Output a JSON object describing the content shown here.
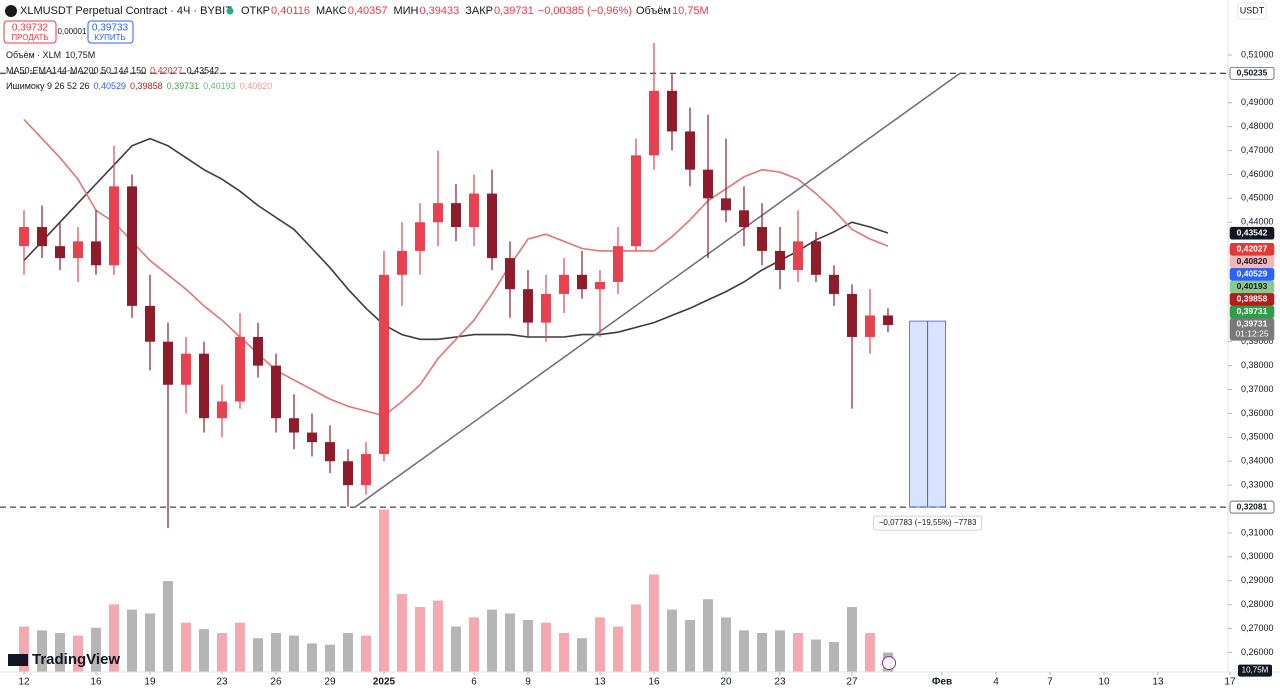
{
  "header": {
    "symbol": "XLMUSDT Perpetual Contract · 4Ч · BYBIT",
    "ohlc": [
      {
        "label": "ОТКР",
        "value": "0,40116"
      },
      {
        "label": "МАКС",
        "value": "0,40357"
      },
      {
        "label": "МИН",
        "value": "0,39433"
      },
      {
        "label": "ЗАКР",
        "value": "0,39731"
      }
    ],
    "change": "−0,00385 (−0,96%)",
    "volume_label": "Объём",
    "volume": "10,75M"
  },
  "trade": {
    "sell_price": "0,39732",
    "sell_label": "ПРОДАТЬ",
    "spread": "0,00001",
    "buy_price": "0,39733",
    "buy_label": "КУПИТЬ"
  },
  "indicators": [
    {
      "name": "Объём · XLM",
      "values": [
        {
          "text": "10,75M",
          "color": "#131722"
        }
      ]
    },
    {
      "name": "MA50-EMA144-MA200 50 144 150",
      "values": [
        {
          "text": "0,42027",
          "color": "#e53935"
        },
        {
          "text": "0,43542",
          "color": "#131722"
        }
      ]
    },
    {
      "name": "Ишимоку 9 26 52 26",
      "values": [
        {
          "text": "0,40529",
          "color": "#2962ff"
        },
        {
          "text": "0,39858",
          "color": "#b71c1c"
        },
        {
          "text": "0,39731",
          "color": "#43a047"
        },
        {
          "text": "0,40193",
          "color": "#66bb6a"
        },
        {
          "text": "0,40820",
          "color": "#ef9a9a"
        }
      ]
    }
  ],
  "currency": "USDT",
  "brand": "TradingView",
  "chart_data": {
    "type": "candlestick",
    "xlim": [
      -1.333,
      66.89
    ],
    "ylim": [
      0.2518,
      0.533
    ],
    "xticks": [
      {
        "value": 0,
        "label": "12"
      },
      {
        "value": 4,
        "label": "16"
      },
      {
        "value": 7,
        "label": "19"
      },
      {
        "value": 11,
        "label": "23"
      },
      {
        "value": 14,
        "label": "26"
      },
      {
        "value": 17,
        "label": "29"
      },
      {
        "value": 20,
        "label": "2025"
      },
      {
        "value": 25,
        "label": "6"
      },
      {
        "value": 28,
        "label": "9"
      },
      {
        "value": 32,
        "label": "13"
      },
      {
        "value": 35,
        "label": "16"
      },
      {
        "value": 39,
        "label": "20"
      },
      {
        "value": 42,
        "label": "23"
      },
      {
        "value": 46,
        "label": "27"
      },
      {
        "value": 51,
        "label": "Фев"
      },
      {
        "value": 54,
        "label": "4"
      },
      {
        "value": 57,
        "label": "7"
      },
      {
        "value": 60,
        "label": "10"
      },
      {
        "value": 63,
        "label": "13"
      },
      {
        "value": 67,
        "label": "17"
      }
    ],
    "yticks": [
      {
        "value": 0.51,
        "label": "0,51000"
      },
      {
        "value": 0.49,
        "label": "0,49000"
      },
      {
        "value": 0.48,
        "label": "0,48000"
      },
      {
        "value": 0.47,
        "label": "0,47000"
      },
      {
        "value": 0.46,
        "label": "0,46000"
      },
      {
        "value": 0.45,
        "label": "0,45000"
      },
      {
        "value": 0.44,
        "label": "0,44000"
      },
      {
        "value": 0.39,
        "label": "0,39000"
      },
      {
        "value": 0.38,
        "label": "0,38000"
      },
      {
        "value": 0.37,
        "label": "0,37000"
      },
      {
        "value": 0.36,
        "label": "0,36000"
      },
      {
        "value": 0.35,
        "label": "0,35000"
      },
      {
        "value": 0.34,
        "label": "0,34000"
      },
      {
        "value": 0.33,
        "label": "0,33000"
      },
      {
        "value": 0.31,
        "label": "0,31000"
      },
      {
        "value": 0.3,
        "label": "0,30000"
      },
      {
        "value": 0.29,
        "label": "0,29000"
      },
      {
        "value": 0.28,
        "label": "0,28000"
      },
      {
        "value": 0.27,
        "label": "0,27000"
      },
      {
        "value": 0.26,
        "label": "0,26000"
      }
    ],
    "x": [
      0,
      1,
      2,
      3,
      4,
      5,
      6,
      7,
      8,
      9,
      10,
      11,
      12,
      13,
      14,
      15,
      16,
      17,
      18,
      19,
      20,
      21,
      22,
      23,
      24,
      25,
      26,
      27,
      28,
      29,
      30,
      31,
      32,
      33,
      34,
      35,
      36,
      37,
      38,
      39,
      40,
      41,
      42,
      43,
      44,
      45,
      46,
      47,
      48
    ],
    "open": [
      0.43,
      0.438,
      0.43,
      0.425,
      0.432,
      0.422,
      0.455,
      0.405,
      0.39,
      0.372,
      0.385,
      0.358,
      0.365,
      0.392,
      0.38,
      0.358,
      0.352,
      0.348,
      0.34,
      0.33,
      0.343,
      0.418,
      0.428,
      0.44,
      0.448,
      0.438,
      0.452,
      0.425,
      0.412,
      0.398,
      0.41,
      0.418,
      0.412,
      0.415,
      0.43,
      0.468,
      0.495,
      0.478,
      0.462,
      0.45,
      0.445,
      0.438,
      0.428,
      0.42,
      0.432,
      0.418,
      0.41,
      0.392,
      0.401
    ],
    "high": [
      0.445,
      0.447,
      0.44,
      0.438,
      0.445,
      0.472,
      0.46,
      0.418,
      0.398,
      0.392,
      0.39,
      0.372,
      0.402,
      0.398,
      0.385,
      0.368,
      0.36,
      0.355,
      0.345,
      0.348,
      0.428,
      0.44,
      0.448,
      0.47,
      0.456,
      0.46,
      0.462,
      0.432,
      0.42,
      0.418,
      0.425,
      0.428,
      0.42,
      0.438,
      0.475,
      0.515,
      0.502,
      0.488,
      0.485,
      0.475,
      0.455,
      0.448,
      0.438,
      0.445,
      0.436,
      0.422,
      0.414,
      0.412,
      0.404
    ],
    "low": [
      0.418,
      0.425,
      0.42,
      0.415,
      0.418,
      0.418,
      0.4,
      0.378,
      0.312,
      0.36,
      0.352,
      0.35,
      0.362,
      0.375,
      0.352,
      0.345,
      0.342,
      0.335,
      0.321,
      0.326,
      0.34,
      0.405,
      0.418,
      0.43,
      0.432,
      0.43,
      0.42,
      0.4,
      0.392,
      0.39,
      0.402,
      0.408,
      0.392,
      0.41,
      0.428,
      0.462,
      0.47,
      0.455,
      0.425,
      0.44,
      0.43,
      0.422,
      0.412,
      0.415,
      0.415,
      0.405,
      0.362,
      0.385,
      0.394
    ],
    "close": [
      0.438,
      0.43,
      0.425,
      0.432,
      0.422,
      0.455,
      0.405,
      0.39,
      0.372,
      0.385,
      0.358,
      0.365,
      0.392,
      0.38,
      0.358,
      0.352,
      0.348,
      0.34,
      0.33,
      0.343,
      0.418,
      0.428,
      0.44,
      0.448,
      0.438,
      0.452,
      0.425,
      0.412,
      0.398,
      0.41,
      0.418,
      0.412,
      0.415,
      0.43,
      0.468,
      0.495,
      0.478,
      0.462,
      0.45,
      0.445,
      0.438,
      0.428,
      0.42,
      0.432,
      0.418,
      0.41,
      0.392,
      0.401,
      0.397
    ],
    "volume": [
      350,
      320,
      300,
      280,
      340,
      520,
      480,
      450,
      700,
      380,
      330,
      300,
      380,
      260,
      300,
      280,
      220,
      210,
      300,
      280,
      1250,
      600,
      500,
      550,
      350,
      420,
      480,
      450,
      400,
      380,
      300,
      260,
      420,
      350,
      520,
      750,
      480,
      400,
      560,
      420,
      320,
      300,
      320,
      300,
      250,
      230,
      500,
      300,
      150
    ],
    "up_color": "#e8414f",
    "down_color": "#8e1c2a",
    "volume_up_color": "#f5a8b0",
    "volume_down_color": "#b5b5b5",
    "volume_tag": {
      "value": 10.75,
      "label": "10,75M"
    },
    "lines": [
      {
        "color": "#3c3c3c",
        "values": [
          0.424,
          0.432,
          0.44,
          0.448,
          0.456,
          0.464,
          0.472,
          0.475,
          0.472,
          0.467,
          0.462,
          0.458,
          0.453,
          0.447,
          0.442,
          0.437,
          0.429,
          0.421,
          0.412,
          0.404,
          0.397,
          0.393,
          0.391,
          0.391,
          0.392,
          0.393,
          0.393,
          0.393,
          0.392,
          0.392,
          0.392,
          0.393,
          0.393,
          0.394,
          0.396,
          0.398,
          0.401,
          0.404,
          0.4075,
          0.411,
          0.415,
          0.42,
          0.424,
          0.428,
          0.4326,
          0.436,
          0.44,
          0.438,
          0.4355
        ]
      },
      {
        "color": "#e57373",
        "values": [
          0.483,
          0.475,
          0.467,
          0.458,
          0.445,
          0.44,
          0.432,
          0.424,
          0.418,
          0.412,
          0.405,
          0.399,
          0.392,
          0.385,
          0.378,
          0.374,
          0.37,
          0.366,
          0.363,
          0.361,
          0.359,
          0.365,
          0.372,
          0.383,
          0.391,
          0.399,
          0.41,
          0.422,
          0.433,
          0.435,
          0.432,
          0.429,
          0.428,
          0.428,
          0.428,
          0.428,
          0.434,
          0.441,
          0.449,
          0.454,
          0.459,
          0.462,
          0.461,
          0.458,
          0.452,
          0.445,
          0.437,
          0.433,
          0.43
        ]
      }
    ],
    "hlines": [
      0.50235,
      0.32081
    ],
    "trendline": {
      "x": [
        18.4,
        52
      ],
      "y": [
        0.32081,
        0.50235
      ]
    },
    "measure": {
      "x": [
        49.2,
        51.2
      ],
      "y": [
        0.39864,
        0.32081
      ],
      "label": "−0,07783 (−19,55%) −7783"
    },
    "price_tags": [
      {
        "value": 0.50235,
        "label": "0,50235",
        "color": "#ffffff",
        "text_color": "#131722"
      },
      {
        "value": 0.43542,
        "label": "0,43542",
        "color": "#131722",
        "text_color": "#ffffff"
      },
      {
        "value": 0.42027,
        "label": "0,42027",
        "color": "#e53935",
        "text_color": "#ffffff"
      },
      {
        "value": 0.4082,
        "label": "0,40820",
        "color": "#f4b6b6",
        "text_color": "#131722"
      },
      {
        "value": 0.40529,
        "label": "0,40529",
        "color": "#2962ff",
        "text_color": "#ffffff"
      },
      {
        "value": 0.40193,
        "label": "0,40193",
        "color": "#8bc98e",
        "text_color": "#131722"
      },
      {
        "value": 0.39858,
        "label": "0,39858",
        "color": "#b71c1c",
        "text_color": "#ffffff"
      },
      {
        "value": 0.39731,
        "label": "0,39731",
        "color": "#7a7a7a",
        "text_color": "#ffffff",
        "countdown": "01:12:25"
      },
      {
        "value": 0.39731,
        "label": "0,39731",
        "color": "#2e9e44",
        "text_color": "#ffffff"
      },
      {
        "value": 0.32081,
        "label": "0,32081",
        "color": "#ffffff",
        "text_color": "#131722"
      }
    ]
  }
}
